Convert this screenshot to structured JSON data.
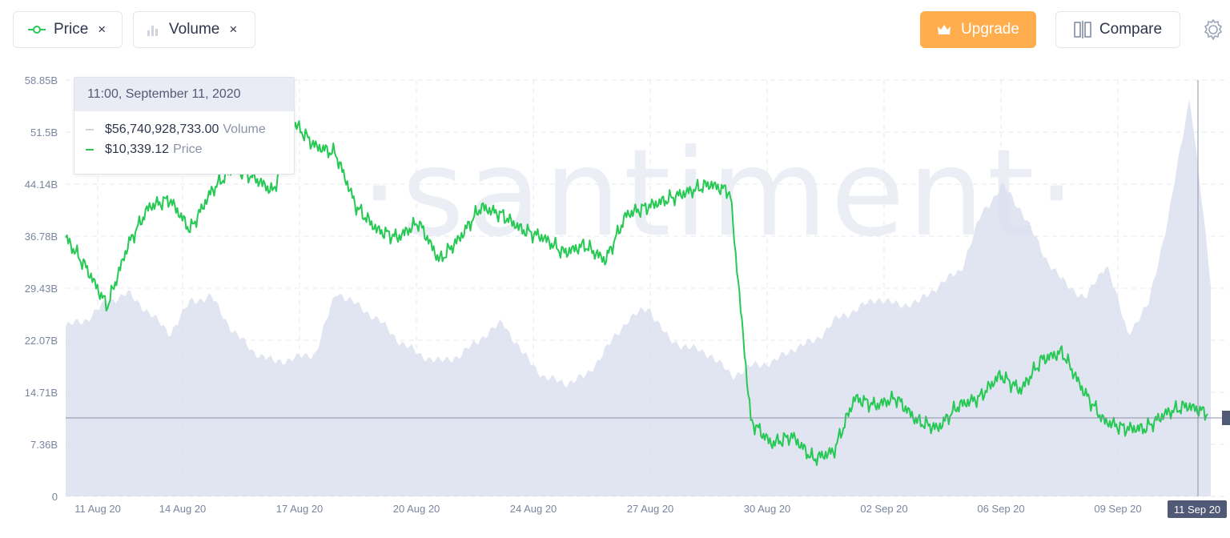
{
  "toolbar": {
    "price_chip_label": "Price",
    "volume_chip_label": "Volume",
    "remove_symbol": "×",
    "upgrade_label": "Upgrade",
    "compare_label": "Compare"
  },
  "colors": {
    "price": "#26c953",
    "volume_fill": "#dcdfee",
    "accent": "#ffad4d",
    "badge": "#505a76"
  },
  "watermark": "·santiment·",
  "tooltip": {
    "datetime": "11:00, September 11, 2020",
    "volume_value": "$56,740,928,733.00",
    "volume_label": "Volume",
    "price_value": "$10,339.12",
    "price_label": "Price"
  },
  "crosshair": {
    "x_label": "11 Sep 20"
  },
  "chart_data": {
    "type": "line",
    "y_ticks": [
      "58.85B",
      "51.5B",
      "44.14B",
      "36.78B",
      "29.43B",
      "22.07B",
      "14.71B",
      "7.36B",
      "0"
    ],
    "x_ticks": [
      "11 Aug 20",
      "14 Aug 20",
      "17 Aug 20",
      "20 Aug 20",
      "24 Aug 20",
      "27 Aug 20",
      "30 Aug 20",
      "02 Sep 20",
      "06 Sep 20",
      "09 Sep 20"
    ],
    "ylim": [
      0,
      58.85
    ],
    "grid": true,
    "series": [
      {
        "name": "Price",
        "values": [
          11550,
          11350,
          11100,
          11500,
          11750,
          11800,
          11600,
          11850,
          12000,
          11950,
          11850,
          12300,
          12150,
          12100,
          11750,
          11600,
          11550,
          11650,
          11400,
          11550,
          11750,
          11700,
          11600,
          11550,
          11450,
          11500,
          11400,
          11700,
          11750,
          11800,
          11850,
          11900,
          11850,
          10350,
          10200,
          10250,
          10100,
          10150,
          10500,
          10450,
          10500,
          10350,
          10300,
          10450,
          10500,
          10650,
          10550,
          10750,
          10800,
          10550,
          10350,
          10300,
          10300,
          10400,
          10450,
          10400
        ]
      },
      {
        "name": "Volume",
        "values": [
          24.0,
          25.0,
          27.5,
          28.7,
          26.0,
          23.0,
          27.6,
          28.2,
          23.5,
          20.5,
          19.0,
          19.5,
          20.2,
          29.0,
          27.0,
          25.0,
          22.0,
          20.0,
          19.0,
          20.0,
          22.5,
          24.6,
          20.0,
          16.8,
          16.0,
          17.0,
          21.0,
          25.0,
          26.7,
          22.0,
          21.0,
          20.0,
          17.0,
          18.5,
          19.0,
          21.0,
          22.0,
          25.0,
          26.5,
          28.0,
          27.0,
          27.5,
          30.0,
          32.0,
          40.0,
          44.0,
          40.0,
          34.0,
          30.0,
          28.0,
          33.0,
          23.0,
          27.0,
          40.0,
          56.7,
          30.0
        ]
      }
    ]
  }
}
